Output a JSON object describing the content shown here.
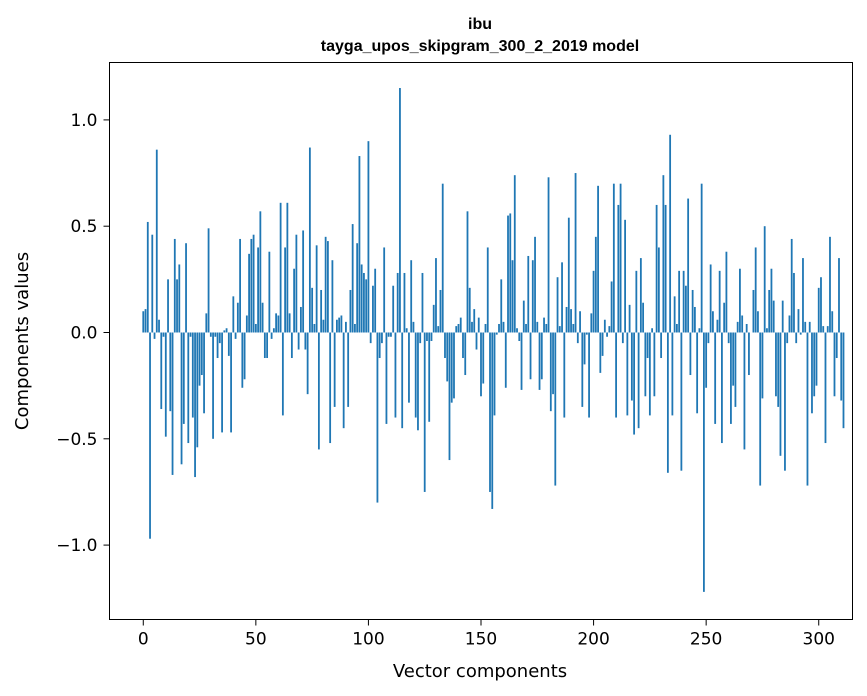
{
  "chart_data": {
    "type": "bar",
    "title": "ibu",
    "subtitle": "tayga_upos_skipgram_300_2_2019 model",
    "xlabel": "Vector components",
    "ylabel": "Components values",
    "xlim": [
      -15,
      315
    ],
    "ylim": [
      -1.35,
      1.27
    ],
    "xticks": [
      0,
      50,
      100,
      150,
      200,
      250,
      300
    ],
    "yticks": [
      -1.0,
      -0.5,
      0.0,
      0.5,
      1.0
    ],
    "ytick_labels": [
      "−1.0",
      "−0.5",
      "0.0",
      "0.5",
      "1.0"
    ],
    "grid": false,
    "bar_color": "#1f77b4",
    "values": [
      0.1,
      0.11,
      0.52,
      -0.97,
      0.46,
      -0.03,
      0.86,
      0.06,
      -0.36,
      -0.02,
      -0.49,
      0.25,
      -0.37,
      -0.67,
      0.44,
      0.25,
      0.32,
      -0.62,
      -0.43,
      0.42,
      -0.52,
      -0.02,
      -0.4,
      -0.68,
      -0.54,
      -0.25,
      -0.2,
      -0.38,
      0.09,
      0.49,
      -0.02,
      -0.5,
      -0.02,
      -0.12,
      -0.05,
      -0.47,
      0.01,
      0.02,
      -0.11,
      -0.47,
      0.17,
      -0.03,
      0.14,
      0.44,
      -0.26,
      -0.22,
      0.08,
      0.37,
      0.44,
      0.46,
      0.04,
      0.4,
      0.57,
      0.14,
      -0.12,
      -0.12,
      0.38,
      -0.03,
      0.02,
      0.09,
      0.08,
      0.61,
      -0.39,
      0.4,
      0.61,
      0.09,
      -0.12,
      0.3,
      0.46,
      -0.08,
      0.12,
      0.48,
      -0.08,
      -0.29,
      0.87,
      0.21,
      0.04,
      0.41,
      -0.55,
      0.2,
      0.06,
      0.45,
      0.43,
      -0.52,
      0.34,
      -0.35,
      0.06,
      0.07,
      0.08,
      -0.45,
      0.05,
      -0.35,
      0.2,
      0.51,
      0.04,
      0.42,
      0.83,
      0.32,
      0.28,
      0.25,
      0.9,
      -0.05,
      0.22,
      0.3,
      -0.8,
      -0.12,
      -0.05,
      0.4,
      -0.43,
      -0.02,
      -0.02,
      0.22,
      -0.4,
      0.28,
      1.15,
      -0.45,
      0.28,
      0.02,
      -0.33,
      0.34,
      0.05,
      -0.4,
      -0.46,
      -0.05,
      0.28,
      -0.75,
      -0.04,
      -0.42,
      -0.04,
      0.13,
      0.35,
      0.03,
      0.2,
      0.7,
      -0.12,
      -0.23,
      -0.6,
      -0.33,
      -0.31,
      0.03,
      0.04,
      0.07,
      -0.12,
      -0.2,
      0.57,
      0.21,
      0.05,
      0.11,
      -0.08,
      0.07,
      -0.3,
      -0.24,
      0.04,
      0.4,
      -0.75,
      -0.83,
      -0.39,
      -0.01,
      0.04,
      0.25,
      0.05,
      -0.26,
      0.55,
      0.56,
      0.34,
      0.74,
      0.02,
      -0.04,
      -0.27,
      0.15,
      0.04,
      0.36,
      -0.22,
      0.34,
      0.45,
      0.05,
      -0.27,
      -0.22,
      0.07,
      0.04,
      0.73,
      -0.37,
      -0.29,
      -0.72,
      0.26,
      0.03,
      0.33,
      -0.4,
      0.12,
      0.54,
      0.11,
      0.04,
      0.75,
      -0.05,
      0.1,
      -0.35,
      -0.15,
      -0.01,
      -0.4,
      0.09,
      0.29,
      0.45,
      0.69,
      -0.19,
      -0.11,
      0.06,
      -0.02,
      0.03,
      0.24,
      0.7,
      -0.4,
      0.6,
      0.7,
      -0.05,
      0.53,
      -0.39,
      0.13,
      -0.32,
      -0.48,
      0.29,
      -0.45,
      0.35,
      0.14,
      -0.3,
      -0.12,
      -0.39,
      0.02,
      -0.3,
      0.6,
      0.4,
      -0.12,
      0.74,
      0.6,
      -0.66,
      0.93,
      -0.39,
      0.17,
      0.04,
      0.29,
      -0.65,
      0.29,
      0.22,
      0.63,
      -0.2,
      0.2,
      0.12,
      -0.38,
      0.02,
      0.7,
      -1.22,
      -0.26,
      -0.05,
      0.32,
      0.1,
      -0.43,
      0.06,
      0.29,
      -0.52,
      0.14,
      0.38,
      -0.05,
      -0.43,
      -0.25,
      -0.35,
      0.05,
      0.3,
      0.08,
      -0.55,
      0.04,
      -0.2,
      0.0,
      0.2,
      0.4,
      0.1,
      -0.72,
      -0.31,
      0.5,
      0.02,
      0.2,
      0.3,
      0.15,
      -0.3,
      -0.35,
      -0.58,
      0.15,
      -0.65,
      -0.05,
      0.08,
      0.44,
      0.28,
      -0.05,
      0.11,
      -0.01,
      0.35,
      0.05,
      -0.72,
      0.05,
      -0.38,
      -0.3,
      -0.25,
      0.21,
      0.26,
      0.03,
      -0.52,
      0.03,
      0.45,
      0.1,
      -0.3,
      -0.12,
      0.35,
      -0.32,
      -0.45
    ]
  }
}
